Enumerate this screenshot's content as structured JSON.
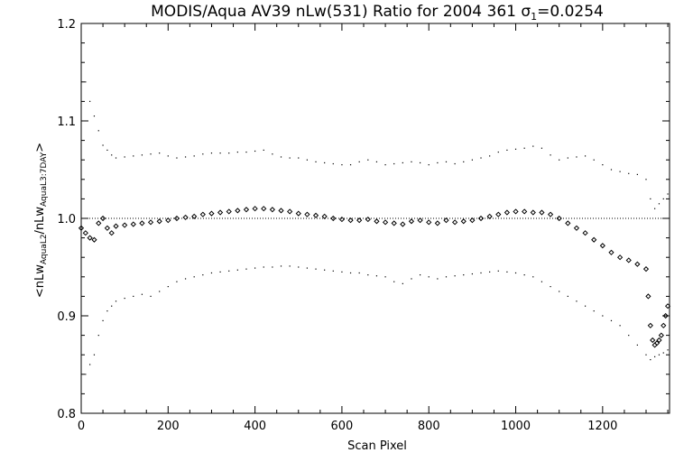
{
  "chart_data": {
    "type": "scatter",
    "title": "MODIS/Aqua AV39 nLw(531) Ratio for 2004 361 σ",
    "title_sub": "1",
    "title_suffix": "=0.0254",
    "xlabel": "Scan Pixel",
    "ylabel": {
      "open": "<nLw",
      "sub1": "AquaL2",
      "mid": "/nLw",
      "sub2": "AquaL3:7DAY",
      "close": ">"
    },
    "xlim": [
      0,
      1354
    ],
    "ylim": [
      0.8,
      1.2
    ],
    "x_ticks": [
      0,
      200,
      400,
      600,
      800,
      1000,
      1200
    ],
    "x_tick_labels": [
      "0",
      "200",
      "400",
      "600",
      "800",
      "1000",
      "1200"
    ],
    "y_ticks": [
      0.8,
      0.9,
      1.0,
      1.1,
      1.2
    ],
    "y_tick_labels": [
      "0.8",
      "0.9",
      "1.0",
      "1.1",
      "1.2"
    ],
    "reference_line_y": 1.0,
    "grid": false,
    "legend": "none",
    "colors": {
      "marks": "#000000",
      "background": "#ffffff"
    },
    "series": [
      {
        "role": "mean-ratio",
        "marker": "diamond",
        "x": [
          0,
          10,
          20,
          30,
          40,
          50,
          60,
          70,
          80,
          100,
          120,
          140,
          160,
          180,
          200,
          220,
          240,
          260,
          280,
          300,
          320,
          340,
          360,
          380,
          400,
          420,
          440,
          460,
          480,
          500,
          520,
          540,
          560,
          580,
          600,
          620,
          640,
          660,
          680,
          700,
          720,
          740,
          760,
          780,
          800,
          820,
          840,
          860,
          880,
          900,
          920,
          940,
          960,
          980,
          1000,
          1020,
          1040,
          1060,
          1080,
          1100,
          1120,
          1140,
          1160,
          1180,
          1200,
          1220,
          1240,
          1260,
          1280,
          1300,
          1305,
          1310,
          1315,
          1320,
          1325,
          1330,
          1335,
          1340,
          1345,
          1350
        ],
        "y": [
          0.99,
          0.985,
          0.98,
          0.978,
          0.995,
          1.0,
          0.99,
          0.985,
          0.992,
          0.993,
          0.994,
          0.995,
          0.996,
          0.997,
          0.998,
          1.0,
          1.001,
          1.002,
          1.004,
          1.005,
          1.006,
          1.007,
          1.008,
          1.009,
          1.01,
          1.01,
          1.009,
          1.008,
          1.007,
          1.005,
          1.004,
          1.003,
          1.002,
          1.0,
          0.999,
          0.998,
          0.998,
          0.999,
          0.997,
          0.996,
          0.995,
          0.994,
          0.997,
          0.998,
          0.996,
          0.995,
          0.998,
          0.996,
          0.997,
          0.998,
          1.0,
          1.002,
          1.004,
          1.006,
          1.007,
          1.007,
          1.006,
          1.006,
          1.004,
          1.0,
          0.995,
          0.99,
          0.985,
          0.978,
          0.972,
          0.965,
          0.96,
          0.957,
          0.953,
          0.948,
          0.92,
          0.89,
          0.875,
          0.87,
          0.872,
          0.875,
          0.88,
          0.89,
          0.9,
          0.91
        ]
      },
      {
        "role": "upper-sigma",
        "marker": "dot",
        "x": [
          10,
          20,
          30,
          40,
          50,
          60,
          70,
          80,
          100,
          120,
          140,
          160,
          180,
          200,
          220,
          240,
          260,
          280,
          300,
          320,
          340,
          360,
          380,
          400,
          420,
          440,
          460,
          480,
          500,
          520,
          540,
          560,
          580,
          600,
          620,
          640,
          660,
          680,
          700,
          720,
          740,
          760,
          780,
          800,
          820,
          840,
          860,
          880,
          900,
          920,
          940,
          960,
          980,
          1000,
          1020,
          1040,
          1060,
          1080,
          1100,
          1120,
          1140,
          1160,
          1180,
          1200,
          1220,
          1240,
          1260,
          1280,
          1300,
          1310,
          1320,
          1330,
          1340,
          1350
        ],
        "y": [
          1.14,
          1.12,
          1.105,
          1.09,
          1.075,
          1.07,
          1.065,
          1.062,
          1.063,
          1.064,
          1.065,
          1.066,
          1.067,
          1.064,
          1.062,
          1.063,
          1.064,
          1.066,
          1.067,
          1.067,
          1.067,
          1.068,
          1.068,
          1.069,
          1.07,
          1.066,
          1.063,
          1.062,
          1.062,
          1.06,
          1.058,
          1.057,
          1.056,
          1.055,
          1.055,
          1.058,
          1.06,
          1.058,
          1.055,
          1.056,
          1.057,
          1.058,
          1.057,
          1.055,
          1.057,
          1.058,
          1.056,
          1.058,
          1.06,
          1.062,
          1.064,
          1.068,
          1.07,
          1.071,
          1.072,
          1.074,
          1.072,
          1.065,
          1.06,
          1.062,
          1.063,
          1.064,
          1.06,
          1.055,
          1.05,
          1.048,
          1.046,
          1.045,
          1.04,
          1.02,
          1.01,
          1.015,
          1.02,
          1.025
        ]
      },
      {
        "role": "lower-sigma",
        "marker": "dot",
        "x": [
          10,
          20,
          30,
          40,
          50,
          60,
          70,
          80,
          100,
          120,
          140,
          160,
          180,
          200,
          220,
          240,
          260,
          280,
          300,
          320,
          340,
          360,
          380,
          400,
          420,
          440,
          460,
          480,
          500,
          520,
          540,
          560,
          580,
          600,
          620,
          640,
          660,
          680,
          700,
          720,
          740,
          760,
          780,
          800,
          820,
          840,
          860,
          880,
          900,
          920,
          940,
          960,
          980,
          1000,
          1020,
          1040,
          1060,
          1080,
          1100,
          1120,
          1140,
          1160,
          1180,
          1200,
          1220,
          1240,
          1260,
          1280,
          1300,
          1310,
          1320,
          1330,
          1340,
          1350
        ],
        "y": [
          0.84,
          0.85,
          0.86,
          0.88,
          0.895,
          0.905,
          0.91,
          0.915,
          0.918,
          0.92,
          0.922,
          0.92,
          0.925,
          0.93,
          0.935,
          0.938,
          0.94,
          0.942,
          0.944,
          0.945,
          0.946,
          0.947,
          0.948,
          0.949,
          0.95,
          0.95,
          0.951,
          0.951,
          0.95,
          0.949,
          0.948,
          0.947,
          0.946,
          0.945,
          0.944,
          0.944,
          0.942,
          0.941,
          0.94,
          0.935,
          0.933,
          0.938,
          0.942,
          0.94,
          0.938,
          0.94,
          0.941,
          0.942,
          0.943,
          0.944,
          0.945,
          0.946,
          0.945,
          0.944,
          0.942,
          0.94,
          0.935,
          0.93,
          0.925,
          0.92,
          0.915,
          0.91,
          0.905,
          0.9,
          0.895,
          0.89,
          0.88,
          0.87,
          0.86,
          0.855,
          0.858,
          0.86,
          0.862,
          0.865
        ]
      }
    ]
  }
}
